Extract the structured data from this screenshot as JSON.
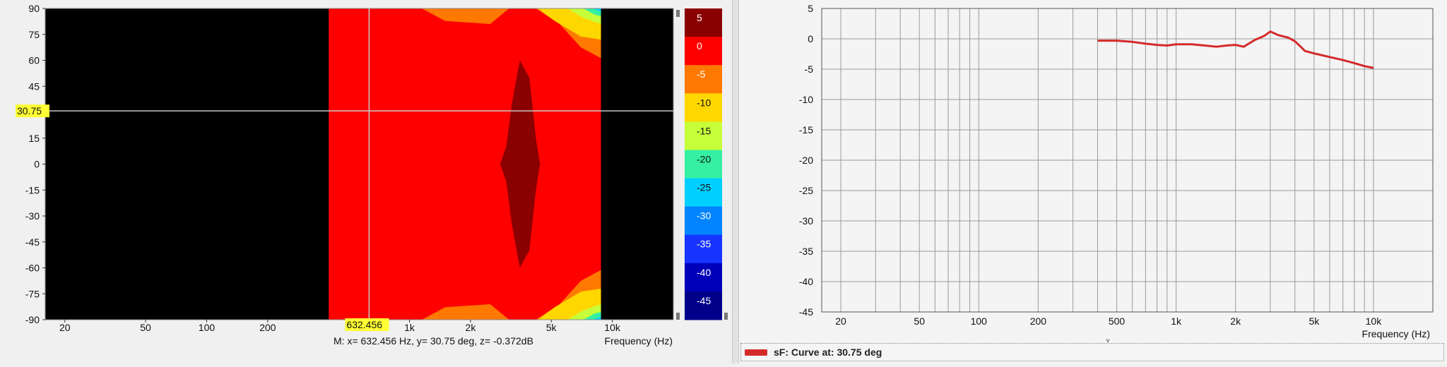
{
  "chart_data": [
    {
      "type": "heatmap",
      "x_ticks": [
        "20",
        "50",
        "100",
        "200",
        "1k",
        "2k",
        "5k",
        "10k"
      ],
      "y_ticks": [
        "90",
        "75",
        "60",
        "45",
        "15",
        "0",
        "-15",
        "-30",
        "-45",
        "-60",
        "-75",
        "-90"
      ],
      "xlabel": "Frequency  (Hz)",
      "x_scale": "log",
      "xlim": [
        16,
        20000
      ],
      "ylim": [
        -90,
        90
      ],
      "cursor": {
        "x_label": "632.456",
        "y_label": "30.75",
        "x": 632.456,
        "y": 30.75
      },
      "readout": "M:  x= 632.456 Hz,  y= 30.75 deg, z= -0.372dB",
      "colorbar": {
        "labels": [
          "5",
          "0",
          "-5",
          "-10",
          "-15",
          "-20",
          "-25",
          "-30",
          "-35",
          "-40",
          "-45"
        ],
        "colors": [
          "#8b0000",
          "#ff0000",
          "#ff7800",
          "#ffd700",
          "#c6ff3a",
          "#35f0a3",
          "#00d0ff",
          "#0084ff",
          "#1834ff",
          "#0000b8",
          "#00008a"
        ]
      }
    },
    {
      "type": "line",
      "x_ticks": [
        "20",
        "50",
        "100",
        "200",
        "500",
        "1k",
        "2k",
        "5k",
        "10k"
      ],
      "y_ticks": [
        "5",
        "0",
        "-5",
        "-10",
        "-15",
        "-20",
        "-25",
        "-30",
        "-35",
        "-40",
        "-45"
      ],
      "xlabel": "Frequency  (Hz)",
      "x_scale": "log",
      "xlim": [
        16,
        20000
      ],
      "ylim": [
        -45,
        5
      ],
      "grid": true,
      "series": [
        {
          "name": "sF: Curve at: 30.75 deg",
          "color": "#d42a2a",
          "x": [
            400,
            500,
            600,
            700,
            800,
            900,
            1000,
            1200,
            1400,
            1600,
            1800,
            2000,
            2200,
            2500,
            2800,
            3000,
            3300,
            3700,
            4000,
            4500,
            5000,
            6000,
            7000,
            8000,
            9000,
            10000
          ],
          "y": [
            -0.3,
            -0.3,
            -0.5,
            -0.8,
            -1.0,
            -1.1,
            -0.9,
            -0.9,
            -1.1,
            -1.3,
            -1.1,
            -1.0,
            -1.3,
            -0.2,
            0.5,
            1.2,
            0.6,
            0.2,
            -0.4,
            -2.0,
            -2.4,
            -3.0,
            -3.5,
            -4.0,
            -4.5,
            -4.8
          ]
        }
      ]
    }
  ],
  "legend": {
    "label": "sF: Curve at: 30.75 deg",
    "color": "#d42a2a"
  }
}
